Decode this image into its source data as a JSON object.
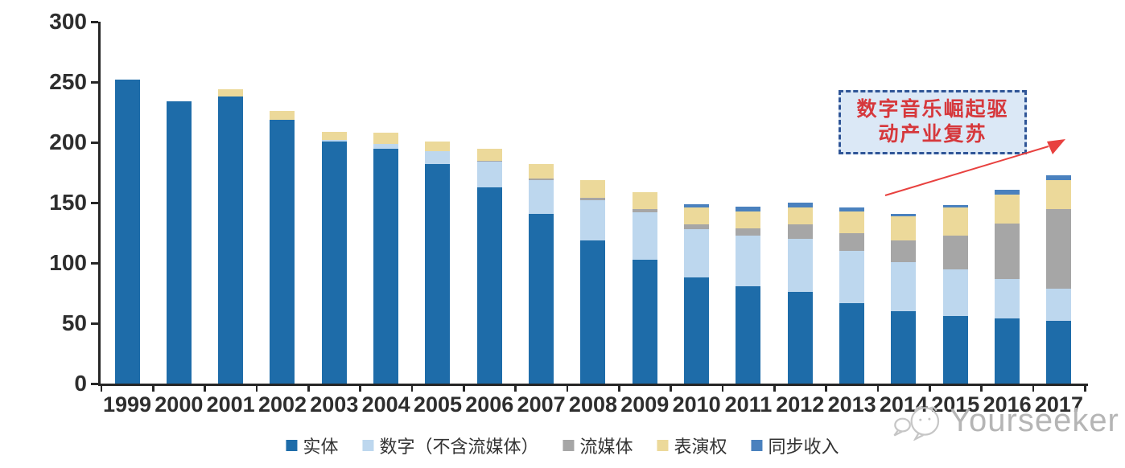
{
  "chart_data": {
    "type": "bar",
    "stacked": true,
    "title": "",
    "xlabel": "",
    "ylabel": "",
    "ylim": [
      0,
      300
    ],
    "yticks": [
      0,
      50,
      100,
      150,
      200,
      250,
      300
    ],
    "grid": false,
    "legend_position": "bottom",
    "categories": [
      "1999",
      "2000",
      "2001",
      "2002",
      "2003",
      "2004",
      "2005",
      "2006",
      "2007",
      "2008",
      "2009",
      "2010",
      "2011",
      "2012",
      "2013",
      "2014",
      "2015",
      "2016",
      "2017"
    ],
    "series": [
      {
        "name": "实体",
        "color": "#1e6ca9",
        "values": [
          252,
          234,
          238,
          219,
          201,
          195,
          182,
          163,
          141,
          119,
          103,
          88,
          81,
          76,
          67,
          60,
          56,
          54,
          52
        ]
      },
      {
        "name": "数字（不含流媒体）",
        "color": "#bdd7ee",
        "values": [
          0,
          0,
          0,
          0,
          1,
          4,
          11,
          21,
          28,
          33,
          39,
          40,
          42,
          44,
          43,
          41,
          39,
          33,
          27
        ]
      },
      {
        "name": "流媒体",
        "color": "#a6a6a6",
        "values": [
          0,
          0,
          0,
          0,
          0,
          0,
          0,
          1,
          1,
          2,
          3,
          4,
          6,
          12,
          15,
          18,
          28,
          46,
          66
        ]
      },
      {
        "name": "表演权",
        "color": "#ecd99a",
        "values": [
          0,
          0,
          6,
          7,
          7,
          9,
          8,
          10,
          12,
          15,
          14,
          14,
          14,
          14,
          18,
          20,
          23,
          24,
          24
        ]
      },
      {
        "name": "同步收入",
        "color": "#4a81be",
        "values": [
          0,
          0,
          0,
          0,
          0,
          0,
          0,
          0,
          0,
          0,
          0,
          3,
          4,
          4,
          3,
          2,
          2,
          4,
          4
        ]
      }
    ]
  },
  "annotation": {
    "lines": [
      "数字音乐崛起驱",
      "动产业复苏"
    ],
    "full_text": "数字音乐崛起驱动产业复苏",
    "box_fill": "#dbe8f6",
    "box_border": "#2f5597",
    "text_color": "#d6383c",
    "arrow_color": "#e8413f"
  },
  "watermark": {
    "text": "Yourseeker",
    "logo": "speech-bubble-face-icon",
    "color": "#b5b5b5"
  },
  "axis_color": "#262626"
}
